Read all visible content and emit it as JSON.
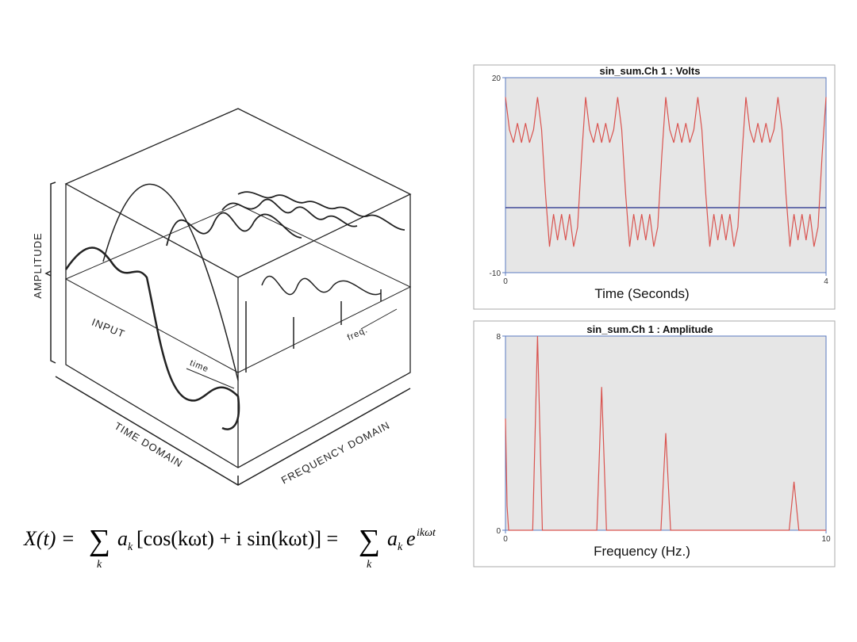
{
  "diagram": {
    "amplitude": "AMPLITUDE",
    "input": "INPUT",
    "time": "time",
    "freq": "freq.",
    "time_domain": "TIME DOMAIN",
    "frequency_domain": "FREQUENCY DOMAIN"
  },
  "formula": {
    "lhs": "X(t) =",
    "sum1": "∑",
    "sub1": "k",
    "a1": "a",
    "k1": "k",
    "mid": "[cos(kωt) + i sin(kωt)] =",
    "sum2": "∑",
    "sub2": "k",
    "a2": "a",
    "k2": "k",
    "e": "e",
    "exp": "ikωt"
  },
  "chart_data": [
    {
      "type": "line",
      "title": "sin_sum.Ch 1 : Volts",
      "xlabel": "Time (Seconds)",
      "x": [
        0,
        0.05,
        0.1,
        0.15,
        0.2,
        0.25,
        0.3,
        0.35,
        0.4,
        0.45,
        0.5,
        0.55,
        0.6,
        0.65,
        0.7,
        0.75,
        0.8,
        0.85,
        0.9,
        0.95,
        1,
        1.05,
        1.1,
        1.15,
        1.2,
        1.25,
        1.3,
        1.35,
        1.4,
        1.45,
        1.5,
        1.55,
        1.6,
        1.65,
        1.7,
        1.75,
        1.8,
        1.85,
        1.9,
        1.95,
        2,
        2.05,
        2.1,
        2.15,
        2.2,
        2.25,
        2.3,
        2.35,
        2.4,
        2.45,
        2.5,
        2.55,
        2.6,
        2.65,
        2.7,
        2.75,
        2.8,
        2.85,
        2.9,
        2.95,
        3,
        3.05,
        3.1,
        3.15,
        3.2,
        3.25,
        3.3,
        3.35,
        3.4,
        3.45,
        3.5,
        3.55,
        3.6,
        3.65,
        3.7,
        3.75,
        3.8,
        3.85,
        3.9,
        3.95,
        4
      ],
      "values": [
        17,
        12,
        10,
        13,
        10,
        13,
        10,
        12,
        17,
        12,
        2,
        -6,
        -1,
        -5,
        -1,
        -5,
        -1,
        -6,
        -3,
        8,
        17,
        12,
        10,
        13,
        10,
        13,
        10,
        12,
        17,
        12,
        2,
        -6,
        -1,
        -5,
        -1,
        -5,
        -1,
        -6,
        -3,
        8,
        17,
        12,
        10,
        13,
        10,
        13,
        10,
        12,
        17,
        12,
        2,
        -6,
        -1,
        -5,
        -1,
        -5,
        -1,
        -6,
        -3,
        8,
        17,
        12,
        10,
        13,
        10,
        13,
        10,
        12,
        17,
        12,
        2,
        -6,
        -1,
        -5,
        -1,
        -5,
        -1,
        -6,
        -3,
        8,
        17
      ],
      "color": "#d9534f",
      "hline": {
        "value": 0,
        "color": "#1f2a8a"
      },
      "xlim": [
        0,
        4
      ],
      "xticks": [
        0,
        4
      ],
      "ylim": [
        -10,
        20
      ],
      "yticks": [
        -10,
        20
      ]
    },
    {
      "type": "line",
      "title": "sin_sum.Ch 1 : Amplitude",
      "xlabel": "Frequency (Hz.)",
      "x": [
        0,
        0.05,
        0.1,
        0.85,
        1,
        1.15,
        2.85,
        3,
        3.15,
        4.85,
        5,
        5.15,
        8.85,
        9,
        9.15,
        10
      ],
      "values": [
        4.6,
        1,
        0,
        0,
        8,
        0,
        0,
        5.9,
        0,
        0,
        4,
        0,
        0,
        2,
        0,
        0
      ],
      "color": "#d9534f",
      "xlim": [
        0,
        10
      ],
      "xticks": [
        0,
        10
      ],
      "ylim": [
        0,
        8
      ],
      "yticks": [
        0,
        8
      ]
    }
  ]
}
